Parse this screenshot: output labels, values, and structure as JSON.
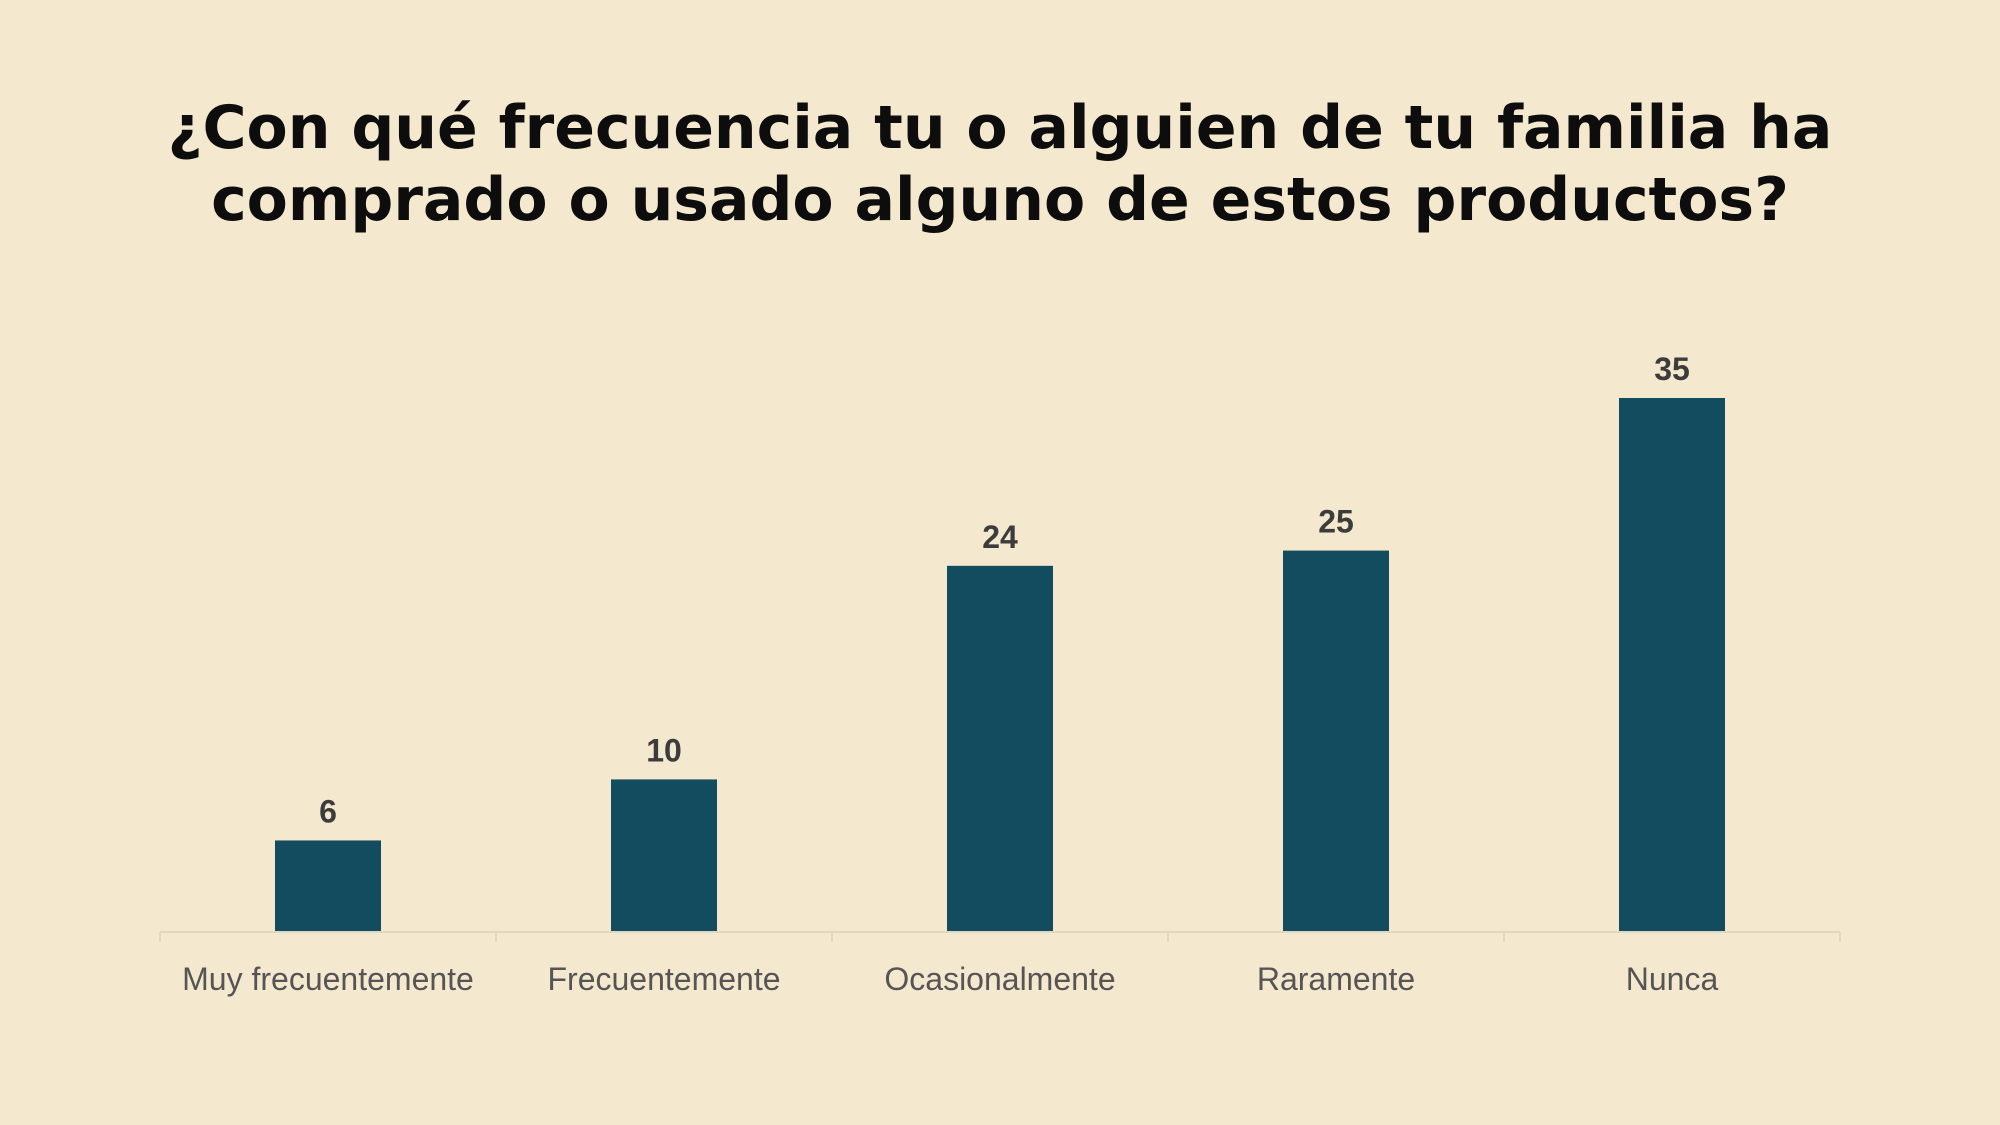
{
  "chart_data": {
    "type": "bar",
    "title_lines": [
      "¿Con qué frecuencia tu o alguien de tu familia ha",
      "comprado o usado alguno de estos productos?"
    ],
    "categories": [
      "Muy frecuentemente",
      "Frecuentemente",
      "Ocasionalmente",
      "Raramente",
      "Nunca"
    ],
    "values": [
      6,
      10,
      24,
      25,
      35
    ],
    "xlabel": "",
    "ylabel": "",
    "ylim": [
      0,
      35
    ],
    "grid": false,
    "legend": "none",
    "data_labels": true,
    "colors": {
      "bar": "#134b5f",
      "axis": "#e0d8c2",
      "background": "#f4e9cf"
    }
  }
}
